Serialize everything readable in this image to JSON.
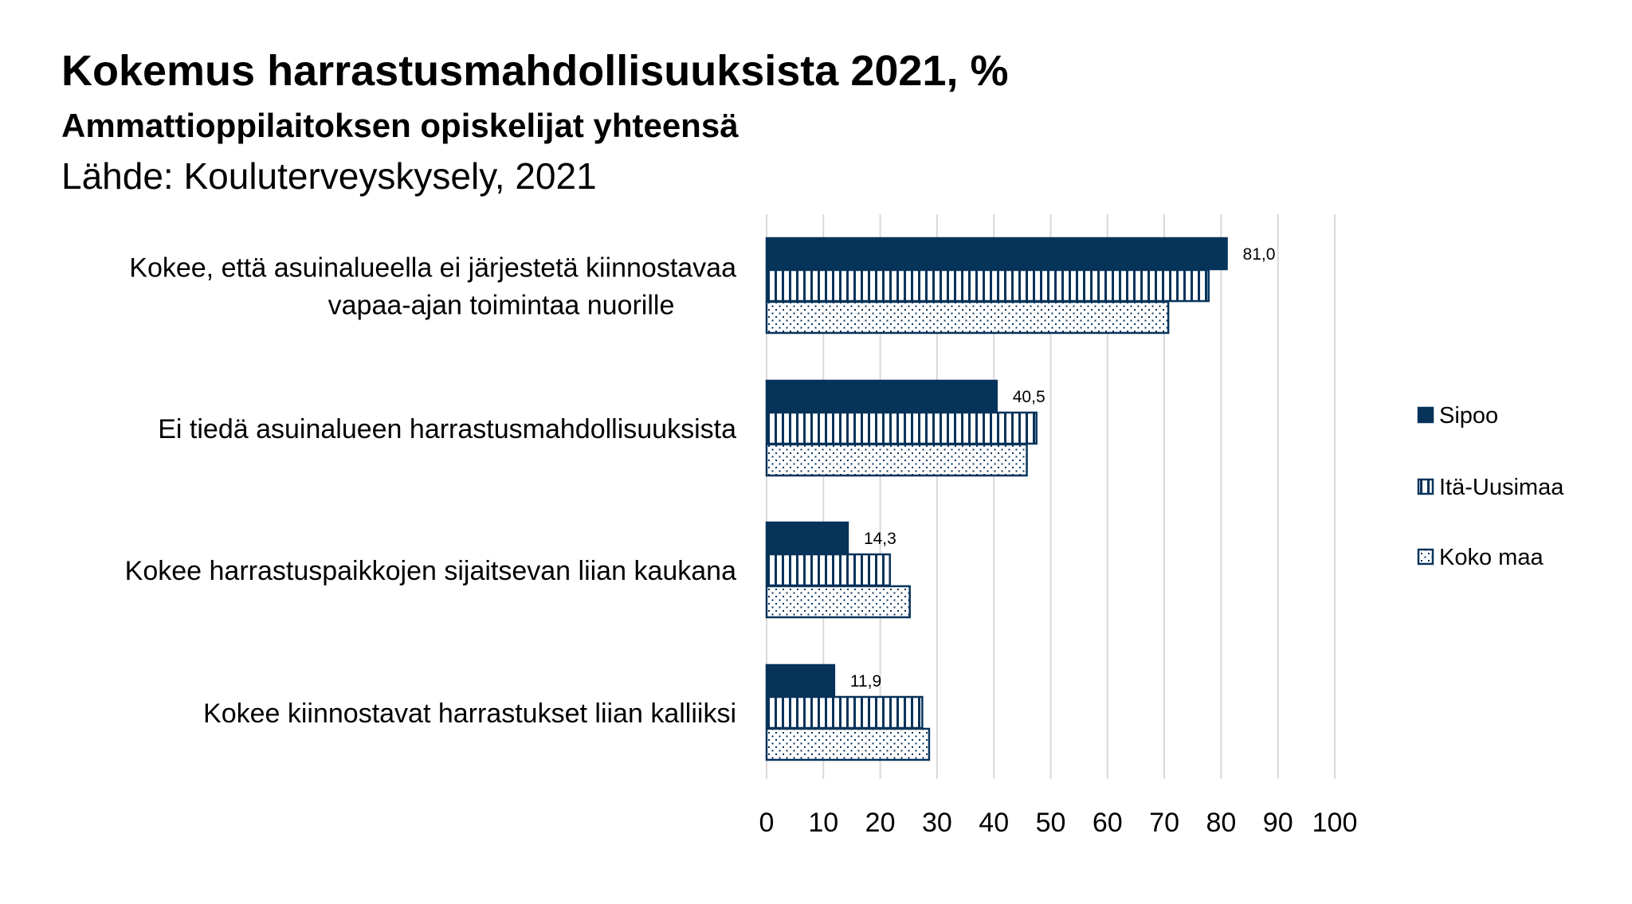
{
  "chart_data": {
    "type": "bar",
    "orientation": "horizontal",
    "title": "Kokemus harrastusmahdollisuuksista 2021, %",
    "subtitle": "Ammattioppilaitoksen opiskelijat yhteensä",
    "source": "Lähde: Kouluterveyskysely, 2021",
    "categories": [
      [
        "Kokee, että asuinalueella ei järjestetä kiinnostavaa",
        "vapaa-ajan toimintaa nuorille"
      ],
      [
        "Ei tiedä asuinalueen harrastusmahdollisuuksista"
      ],
      [
        "Kokee harrastuspaikkojen sijaitsevan liian kaukana"
      ],
      [
        "Kokee kiinnostavat harrastukset liian kalliiksi"
      ]
    ],
    "series": [
      {
        "name": "Sipoo",
        "values": [
          81.0,
          40.5,
          14.3,
          11.9
        ],
        "data_labels": [
          "81,0",
          "40,5",
          "14,3",
          "11,9"
        ],
        "pattern": "solid"
      },
      {
        "name": "Itä-Uusimaa",
        "values": [
          77.8,
          47.5,
          21.7,
          27.4
        ],
        "pattern": "vertical-stripes"
      },
      {
        "name": "Koko maa",
        "values": [
          70.7,
          45.8,
          25.2,
          28.6
        ],
        "pattern": "dots"
      }
    ],
    "xlim": [
      0,
      100
    ],
    "xticks": [
      "0",
      "10",
      "20",
      "30",
      "40",
      "50",
      "60",
      "70",
      "80",
      "90",
      "100"
    ],
    "grid": true,
    "legend": "right",
    "colors": {
      "bar": "#06335a",
      "grid": "#d9d9d9"
    }
  }
}
